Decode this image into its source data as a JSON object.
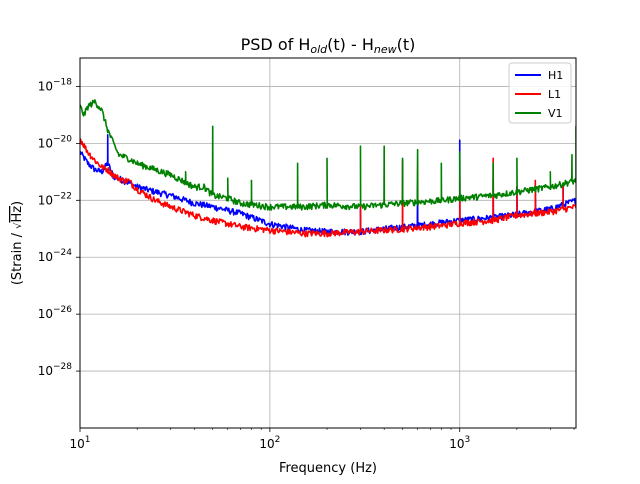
{
  "chart_data": {
    "type": "line",
    "title": {
      "prefix": "PSD of H",
      "sub1": "old",
      "middle": "(t) - H",
      "sub2": "new",
      "suffix": "(t)"
    },
    "xlabel": "Frequency (Hz)",
    "ylabel": {
      "prefix": "(Strain / ",
      "radical": "√",
      "radicand": "Hz",
      "suffix": ")"
    },
    "x_scale": "log",
    "y_scale": "log",
    "xlim": [
      10,
      4096
    ],
    "ylim": [
      1e-30,
      1e-17
    ],
    "x_ticks": [
      {
        "value": 10,
        "base": "10",
        "exp": "1"
      },
      {
        "value": 100,
        "base": "10",
        "exp": "2"
      },
      {
        "value": 1000,
        "base": "10",
        "exp": "3"
      }
    ],
    "y_ticks": [
      {
        "value": 1e-28,
        "base": "10",
        "exp": "−28"
      },
      {
        "value": 1e-26,
        "base": "10",
        "exp": "−26"
      },
      {
        "value": 1e-24,
        "base": "10",
        "exp": "−24"
      },
      {
        "value": 1e-22,
        "base": "10",
        "exp": "−22"
      },
      {
        "value": 1e-20,
        "base": "10",
        "exp": "−20"
      },
      {
        "value": 1e-18,
        "base": "10",
        "exp": "−18"
      }
    ],
    "grid": true,
    "legend_position": "top-right",
    "series": [
      {
        "name": "H1",
        "color": "#0000ff",
        "baseline": [
          [
            10,
            5e-21
          ],
          [
            11,
            2e-21
          ],
          [
            12,
            1.2e-21
          ],
          [
            13,
            1e-21
          ],
          [
            14,
            2e-21
          ],
          [
            15,
            7e-22
          ],
          [
            17,
            5e-22
          ],
          [
            20,
            3e-22
          ],
          [
            25,
            2e-22
          ],
          [
            30,
            1.5e-22
          ],
          [
            40,
            8e-23
          ],
          [
            50,
            6e-23
          ],
          [
            70,
            3.5e-23
          ],
          [
            100,
            1.5e-23
          ],
          [
            150,
            9e-24
          ],
          [
            200,
            8e-24
          ],
          [
            300,
            8e-24
          ],
          [
            400,
            1e-23
          ],
          [
            600,
            1.3e-23
          ],
          [
            1000,
            2e-23
          ],
          [
            1500,
            2.5e-23
          ],
          [
            2000,
            3.2e-23
          ],
          [
            3000,
            5e-23
          ],
          [
            4096,
            1e-22
          ]
        ],
        "lines": [
          [
            14,
            2e-20
          ],
          [
            300,
            5e-23
          ],
          [
            600,
            3e-22
          ],
          [
            1000,
            1.3e-20
          ],
          [
            1500,
            6e-22
          ],
          [
            2000,
            3e-22
          ],
          [
            2500,
            3e-22
          ],
          [
            3500,
            4e-22
          ]
        ]
      },
      {
        "name": "L1",
        "color": "#ff0000",
        "baseline": [
          [
            10,
            1.5e-20
          ],
          [
            11,
            5e-21
          ],
          [
            12,
            2.5e-21
          ],
          [
            13,
            1.5e-21
          ],
          [
            14,
            1.2e-21
          ],
          [
            15,
            8e-22
          ],
          [
            16,
            6e-22
          ],
          [
            17,
            5e-22
          ],
          [
            18,
            5e-22
          ],
          [
            20,
            2.5e-22
          ],
          [
            25,
            1e-22
          ],
          [
            30,
            6e-23
          ],
          [
            40,
            3e-23
          ],
          [
            50,
            2e-23
          ],
          [
            70,
            1.2e-23
          ],
          [
            100,
            9e-24
          ],
          [
            150,
            7e-24
          ],
          [
            200,
            7e-24
          ],
          [
            300,
            8e-24
          ],
          [
            500,
            1e-23
          ],
          [
            800,
            1.3e-23
          ],
          [
            1000,
            1.6e-23
          ],
          [
            1500,
            2e-23
          ],
          [
            2000,
            3e-23
          ],
          [
            3000,
            4e-23
          ],
          [
            4096,
            6e-23
          ]
        ],
        "lines": [
          [
            300,
            6e-23
          ],
          [
            500,
            2.5e-21
          ],
          [
            1000,
            6e-22
          ],
          [
            1500,
            3e-21
          ],
          [
            2000,
            3e-22
          ],
          [
            2500,
            5e-22
          ],
          [
            3500,
            4e-22
          ]
        ]
      },
      {
        "name": "V1",
        "color": "#008000",
        "baseline": [
          [
            10,
            2e-19
          ],
          [
            10.5,
            1e-19
          ],
          [
            11,
            2e-19
          ],
          [
            12,
            3e-19
          ],
          [
            13,
            1.5e-19
          ],
          [
            14,
            3e-20
          ],
          [
            15,
            1e-20
          ],
          [
            16,
            4e-21
          ],
          [
            18,
            3e-21
          ],
          [
            20,
            2e-21
          ],
          [
            25,
            1.2e-21
          ],
          [
            30,
            8e-22
          ],
          [
            40,
            3e-22
          ],
          [
            45,
            3e-22
          ],
          [
            50,
            1.5e-22
          ],
          [
            60,
            1.2e-22
          ],
          [
            70,
            8e-23
          ],
          [
            100,
            6e-23
          ],
          [
            150,
            6e-23
          ],
          [
            200,
            7e-23
          ],
          [
            300,
            6e-23
          ],
          [
            500,
            8e-23
          ],
          [
            800,
            1e-22
          ],
          [
            1000,
            1.2e-22
          ],
          [
            1500,
            1.5e-22
          ],
          [
            2000,
            2e-22
          ],
          [
            3000,
            3e-22
          ],
          [
            4096,
            5e-22
          ]
        ],
        "lines": [
          [
            36,
            1e-21
          ],
          [
            50,
            4e-20
          ],
          [
            60,
            6e-22
          ],
          [
            80,
            5e-22
          ],
          [
            140,
            2e-21
          ],
          [
            200,
            3e-21
          ],
          [
            300,
            8e-21
          ],
          [
            400,
            8e-21
          ],
          [
            500,
            3e-21
          ],
          [
            600,
            6e-21
          ],
          [
            800,
            2e-21
          ],
          [
            1000,
            5e-21
          ],
          [
            1500,
            2e-21
          ],
          [
            2000,
            3e-21
          ],
          [
            3000,
            1e-21
          ],
          [
            3900,
            4e-21
          ],
          [
            4096,
            4e-20
          ]
        ]
      }
    ]
  }
}
